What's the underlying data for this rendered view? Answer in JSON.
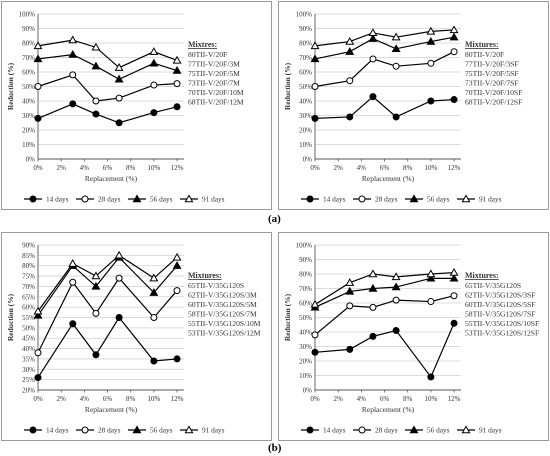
{
  "figure": {
    "label_a": "(a)",
    "label_b": "(b)"
  },
  "chart_data": [
    {
      "type": "line",
      "ylabel": "Reduction (%)",
      "xlabel": "Replacement (%)",
      "x": [
        0,
        3,
        5,
        7,
        10,
        12
      ],
      "x_ticks": [
        "0%",
        "2%",
        "4%",
        "6%",
        "8%",
        "10%",
        "12%"
      ],
      "x_tick_values": [
        0,
        2,
        4,
        6,
        8,
        10,
        12
      ],
      "ylim": [
        0,
        100
      ],
      "y_ticks": [
        "0%",
        "10%",
        "20%",
        "30%",
        "40%",
        "50%",
        "60%",
        "70%",
        "80%",
        "90%",
        "100%"
      ],
      "grid": "horizontal",
      "mixtures_title": "Mixtres:",
      "mixtures": [
        "80TII-V/20F",
        "77TII-V/20F/3M",
        "75TII-V/20F/5M",
        "73TII-V/20F/7M",
        "70TII-V/20F/10M",
        "68TII-V/20F/12M"
      ],
      "series": [
        {
          "name": "14 days",
          "marker": "filled-circle",
          "values": [
            28,
            38,
            31,
            25,
            32,
            36
          ]
        },
        {
          "name": "28 days",
          "marker": "open-circle",
          "values": [
            50,
            58,
            40,
            42,
            51,
            52
          ]
        },
        {
          "name": "56 days",
          "marker": "filled-triangle",
          "values": [
            69,
            72,
            64,
            55,
            66,
            61
          ]
        },
        {
          "name": "91 days",
          "marker": "open-triangle",
          "values": [
            78,
            82,
            77,
            63,
            74,
            68
          ]
        }
      ],
      "legend": "bottom"
    },
    {
      "type": "line",
      "ylabel": "Reduction (%)",
      "xlabel": "Replacement (%)",
      "x": [
        0,
        3,
        5,
        7,
        10,
        12
      ],
      "x_ticks": [
        "0%",
        "2%",
        "4%",
        "6%",
        "8%",
        "10%",
        "12%"
      ],
      "x_tick_values": [
        0,
        2,
        4,
        6,
        8,
        10,
        12
      ],
      "ylim": [
        0,
        100
      ],
      "y_ticks": [
        "0%",
        "10%",
        "20%",
        "30%",
        "40%",
        "50%",
        "60%",
        "70%",
        "80%",
        "90%",
        "100%"
      ],
      "grid": "horizontal",
      "mixtures_title": "Mixtures:",
      "mixtures": [
        "80TII-V/20F",
        "77TII-V/20F/3SF",
        "75TII-V/20F/5SF",
        "73TII-V/20F/7SF",
        "70TII-V/20F/10SF",
        "68TII-V/20F/12SF"
      ],
      "series": [
        {
          "name": "14 days",
          "marker": "filled-circle",
          "values": [
            28,
            29,
            43,
            29,
            40,
            41
          ]
        },
        {
          "name": "28 days",
          "marker": "open-circle",
          "values": [
            50,
            54,
            69,
            64,
            66,
            74
          ]
        },
        {
          "name": "56 days",
          "marker": "filled-triangle",
          "values": [
            69,
            74,
            83,
            76,
            81,
            84
          ]
        },
        {
          "name": "91 days",
          "marker": "open-triangle",
          "values": [
            78,
            81,
            87,
            84,
            88,
            89
          ]
        }
      ],
      "legend": "bottom"
    },
    {
      "type": "line",
      "ylabel": "Reduction (%)",
      "xlabel": "Replacement (%)",
      "x": [
        0,
        3,
        5,
        7,
        10,
        12
      ],
      "x_ticks": [
        "0%",
        "2%",
        "4%",
        "6%",
        "8%",
        "10%",
        "12%"
      ],
      "x_tick_values": [
        0,
        2,
        4,
        6,
        8,
        10,
        12
      ],
      "ylim": [
        20,
        90
      ],
      "y_ticks": [
        "20%",
        "25%",
        "30%",
        "35%",
        "40%",
        "45%",
        "50%",
        "55%",
        "60%",
        "65%",
        "70%",
        "75%",
        "80%",
        "85%",
        "90%"
      ],
      "grid": "horizontal",
      "mixtures_title": "Mixtures:",
      "mixtures": [
        "65TII-V/35G120S",
        "62TII-V/35G120S/3M",
        "60TII-V/35G120S/5M",
        "58TII-V/35G120S/7M",
        "55TII-V/35G120S/10M",
        "53TII-V/35G120S/12M"
      ],
      "series": [
        {
          "name": "14 days",
          "marker": "filled-circle",
          "values": [
            26,
            52,
            37,
            55,
            34,
            35
          ]
        },
        {
          "name": "28 days",
          "marker": "open-circle",
          "values": [
            38,
            72,
            57,
            74,
            55,
            68
          ]
        },
        {
          "name": "56 days",
          "marker": "filled-triangle",
          "values": [
            56,
            80,
            70,
            84,
            67,
            80
          ]
        },
        {
          "name": "91 days",
          "marker": "open-triangle",
          "values": [
            58,
            81,
            75,
            85,
            74,
            84
          ]
        }
      ],
      "legend": "bottom"
    },
    {
      "type": "line",
      "ylabel": "Reduction (%)",
      "xlabel": "Replacement (%)",
      "x": [
        0,
        3,
        5,
        7,
        10,
        12
      ],
      "x_ticks": [
        "0%",
        "2%",
        "4%",
        "6%",
        "8%",
        "10%",
        "12%"
      ],
      "x_tick_values": [
        0,
        2,
        4,
        6,
        8,
        10,
        12
      ],
      "ylim": [
        0,
        100
      ],
      "y_ticks": [
        "0%",
        "10%",
        "20%",
        "30%",
        "40%",
        "50%",
        "60%",
        "70%",
        "80%",
        "90%",
        "100%"
      ],
      "grid": "horizontal",
      "mixtures_title": "Mixtures:",
      "mixtures": [
        "65TII-V/35G120S",
        "62TII-V/35G120S/3SF",
        "60TII-V/35G120S/5SF",
        "58TII-V/35G120S/7SF",
        "55TII-V/35G120S/10SF",
        "53TII-V/35G120S/12SF"
      ],
      "series": [
        {
          "name": "14 days",
          "marker": "filled-circle",
          "values": [
            26,
            28,
            37,
            41,
            9,
            46
          ]
        },
        {
          "name": "28 days",
          "marker": "open-circle",
          "values": [
            38,
            58,
            57,
            62,
            61,
            65
          ]
        },
        {
          "name": "56 days",
          "marker": "filled-triangle",
          "values": [
            57,
            68,
            70,
            71,
            77,
            77
          ]
        },
        {
          "name": "91 days",
          "marker": "open-triangle",
          "values": [
            59,
            74,
            80,
            78,
            80,
            81
          ]
        }
      ],
      "legend": "bottom"
    }
  ]
}
